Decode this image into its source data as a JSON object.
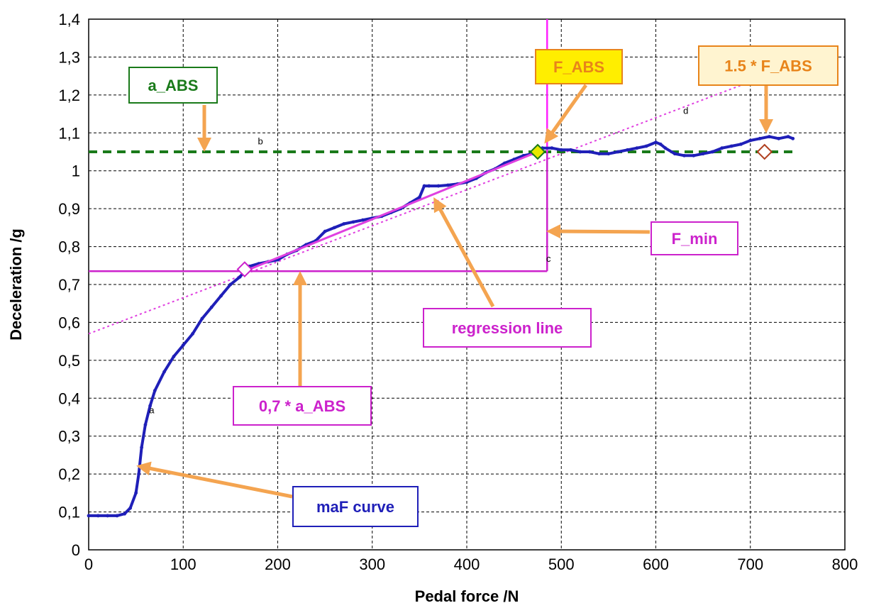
{
  "chart_data": {
    "type": "line",
    "xlabel": "Pedal force /N",
    "ylabel": "Deceleration /g",
    "xlim": [
      0,
      800
    ],
    "ylim": [
      0,
      1.4
    ],
    "grid": true,
    "x_ticks": [
      "0",
      "100",
      "200",
      "300",
      "400",
      "500",
      "600",
      "700",
      "800"
    ],
    "y_ticks": [
      "0",
      "0,1",
      "0,2",
      "0,3",
      "0,4",
      "0,5",
      "0,6",
      "0,7",
      "0,8",
      "0,9",
      "1",
      "1,1",
      "1,2",
      "1,3",
      "1,4"
    ],
    "series": [
      {
        "name": "maF curve",
        "color": "#1f1fb8",
        "x": [
          0,
          10,
          20,
          30,
          38,
          44,
          50,
          53,
          56,
          60,
          65,
          70,
          80,
          90,
          100,
          110,
          120,
          130,
          140,
          150,
          160,
          165,
          170,
          180,
          190,
          200,
          210,
          220,
          230,
          240,
          250,
          260,
          270,
          280,
          290,
          300,
          310,
          320,
          330,
          340,
          350,
          355,
          360,
          370,
          380,
          390,
          400,
          410,
          420,
          430,
          440,
          450,
          460,
          470,
          475,
          480,
          490,
          500,
          510,
          520,
          530,
          540,
          550,
          560,
          570,
          580,
          590,
          600,
          605,
          610,
          620,
          630,
          640,
          650,
          660,
          670,
          680,
          690,
          700,
          710,
          720,
          730,
          740,
          745
        ],
        "y": [
          0.09,
          0.09,
          0.09,
          0.09,
          0.095,
          0.11,
          0.15,
          0.2,
          0.27,
          0.33,
          0.38,
          0.42,
          0.47,
          0.51,
          0.54,
          0.57,
          0.61,
          0.64,
          0.67,
          0.7,
          0.72,
          0.735,
          0.748,
          0.755,
          0.76,
          0.765,
          0.78,
          0.79,
          0.805,
          0.815,
          0.84,
          0.85,
          0.86,
          0.865,
          0.87,
          0.875,
          0.88,
          0.89,
          0.9,
          0.915,
          0.93,
          0.96,
          0.96,
          0.96,
          0.962,
          0.965,
          0.97,
          0.98,
          0.995,
          1.005,
          1.02,
          1.03,
          1.04,
          1.045,
          1.05,
          1.06,
          1.06,
          1.055,
          1.055,
          1.05,
          1.05,
          1.045,
          1.045,
          1.05,
          1.055,
          1.06,
          1.065,
          1.075,
          1.07,
          1.06,
          1.045,
          1.04,
          1.04,
          1.045,
          1.05,
          1.06,
          1.065,
          1.07,
          1.08,
          1.085,
          1.09,
          1.085,
          1.09,
          1.085
        ]
      },
      {
        "name": "regression line",
        "color": "#e040e0",
        "x": [
          165,
          475
        ],
        "y": [
          0.735,
          1.05
        ]
      }
    ],
    "reference_lines": {
      "a_abs": {
        "y": 1.05,
        "color": "#1a7a1a",
        "style": "dashed"
      },
      "f_min_horizontal": {
        "y": 0.735,
        "x_from": 0,
        "x_to": 485,
        "color": "#cc22cc"
      },
      "f_min_vertical": {
        "x": 485,
        "y_from": 0.735,
        "color": "#cc22cc"
      },
      "f_abs_vertical": {
        "x": 485,
        "y_from": 1.05,
        "y_to": 1.4,
        "color": "#ff22ff"
      },
      "regression_extension": {
        "x": [
          0,
          700
        ],
        "y": [
          0.57,
          1.235
        ],
        "color": "#e040e0",
        "style": "dotted"
      }
    },
    "markers": [
      {
        "x": 475,
        "y": 1.05,
        "shape": "diamond",
        "fill": "#e8e800",
        "stroke": "#1a7a1a"
      },
      {
        "x": 715,
        "y": 1.05,
        "shape": "diamond",
        "fill": "#ffffff",
        "stroke": "#b04020"
      },
      {
        "x": 165,
        "y": 0.74,
        "shape": "diamond",
        "fill": "#ffffff",
        "stroke": "#cc22cc"
      }
    ],
    "point_labels": [
      {
        "text": "a",
        "x": 55,
        "y": 0.36
      },
      {
        "text": "b",
        "x": 170,
        "y": 1.07
      },
      {
        "text": "c",
        "x": 475,
        "y": 0.76
      },
      {
        "text": "d",
        "x": 620,
        "y": 1.15
      }
    ],
    "annotations": [
      {
        "text": "a_ABS",
        "text_color": "#1a7a1a",
        "border": "#1a7a1a",
        "bg": "#ffffff"
      },
      {
        "text": "F_ABS",
        "text_color": "#e8841a",
        "border": "#e8841a",
        "bg": "#ffee00"
      },
      {
        "text": "1.5 * F_ABS",
        "text_color": "#e8841a",
        "border": "#e8841a",
        "bg": "#fff4d0"
      },
      {
        "text": "F_min",
        "text_color": "#cc22cc",
        "border": "#cc22cc",
        "bg": "#ffffff"
      },
      {
        "text": "regression line",
        "text_color": "#cc22cc",
        "border": "#cc22cc",
        "bg": "#ffffff"
      },
      {
        "text": "0,7 * a_ABS",
        "text_color": "#cc22cc",
        "border": "#cc22cc",
        "bg": "#ffffff"
      },
      {
        "text": "maF curve",
        "text_color": "#1f1fb8",
        "border": "#1f1fb8",
        "bg": "#ffffff"
      }
    ],
    "arrow_color": "#f4a450"
  }
}
